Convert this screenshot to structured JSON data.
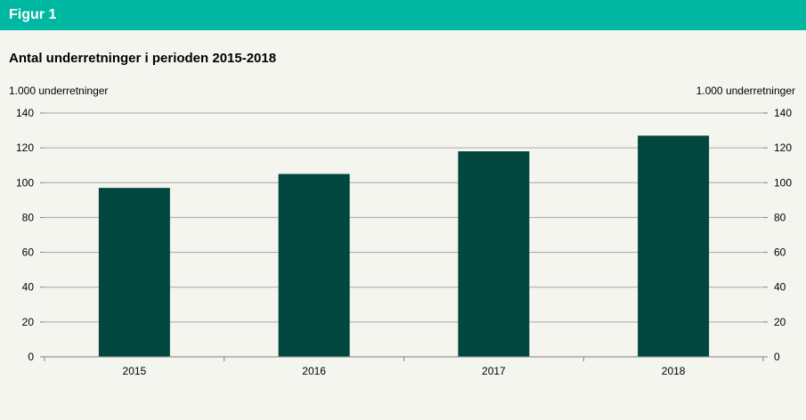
{
  "header": {
    "title": "Figur 1"
  },
  "chart_data": {
    "type": "bar",
    "title": "Antal underretninger i perioden 2015-2018",
    "ylabel_left": "1.000 underretninger",
    "ylabel_right": "1.000 underretninger",
    "categories": [
      "2015",
      "2016",
      "2017",
      "2018"
    ],
    "values": [
      97,
      105,
      118,
      127
    ],
    "ylim": [
      0,
      140
    ],
    "yticks": [
      0,
      20,
      40,
      60,
      80,
      100,
      120,
      140
    ],
    "grid": true,
    "legend": "none",
    "bar_color": "#02473e"
  },
  "colors": {
    "header_bg": "#00b8a2",
    "grid": "#a6a6a6",
    "axis": "#808080"
  }
}
